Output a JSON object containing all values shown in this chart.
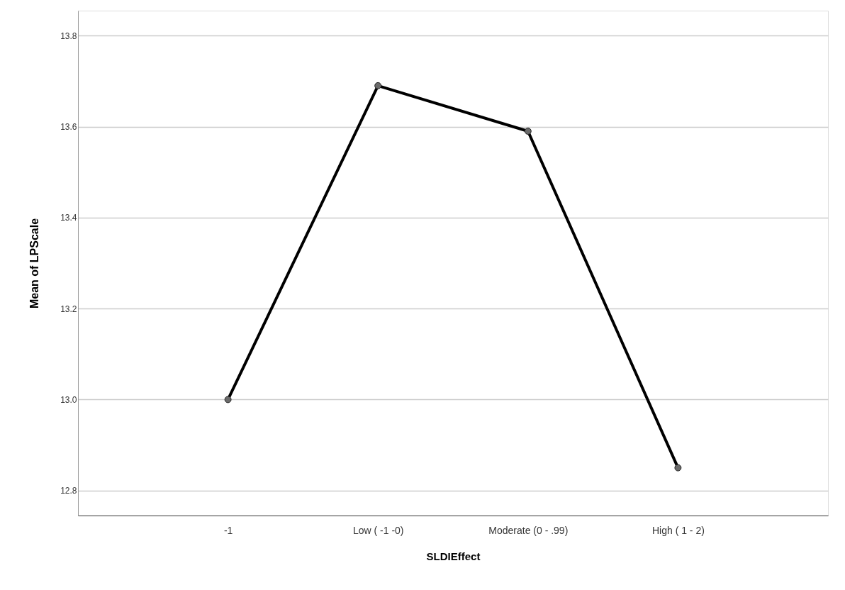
{
  "chart_data": {
    "type": "line",
    "xlabel": "SLDIEffect",
    "ylabel": "Mean of LPScale",
    "categories": [
      "-1",
      "Low ( -1 -0)",
      "Moderate (0 - .99)",
      "High ( 1 - 2)"
    ],
    "series": [
      {
        "color": "#000000",
        "values": [
          13.0,
          13.69,
          13.59,
          12.85
        ]
      }
    ],
    "ylim": [
      12.745,
      13.855
    ],
    "yticks": [
      12.8,
      {
        "value": 13,
        "label": "13.0"
      },
      13.2,
      13.4,
      13.6,
      13.8
    ],
    "grid": "y",
    "marker": "circle",
    "line_style": "solid"
  }
}
